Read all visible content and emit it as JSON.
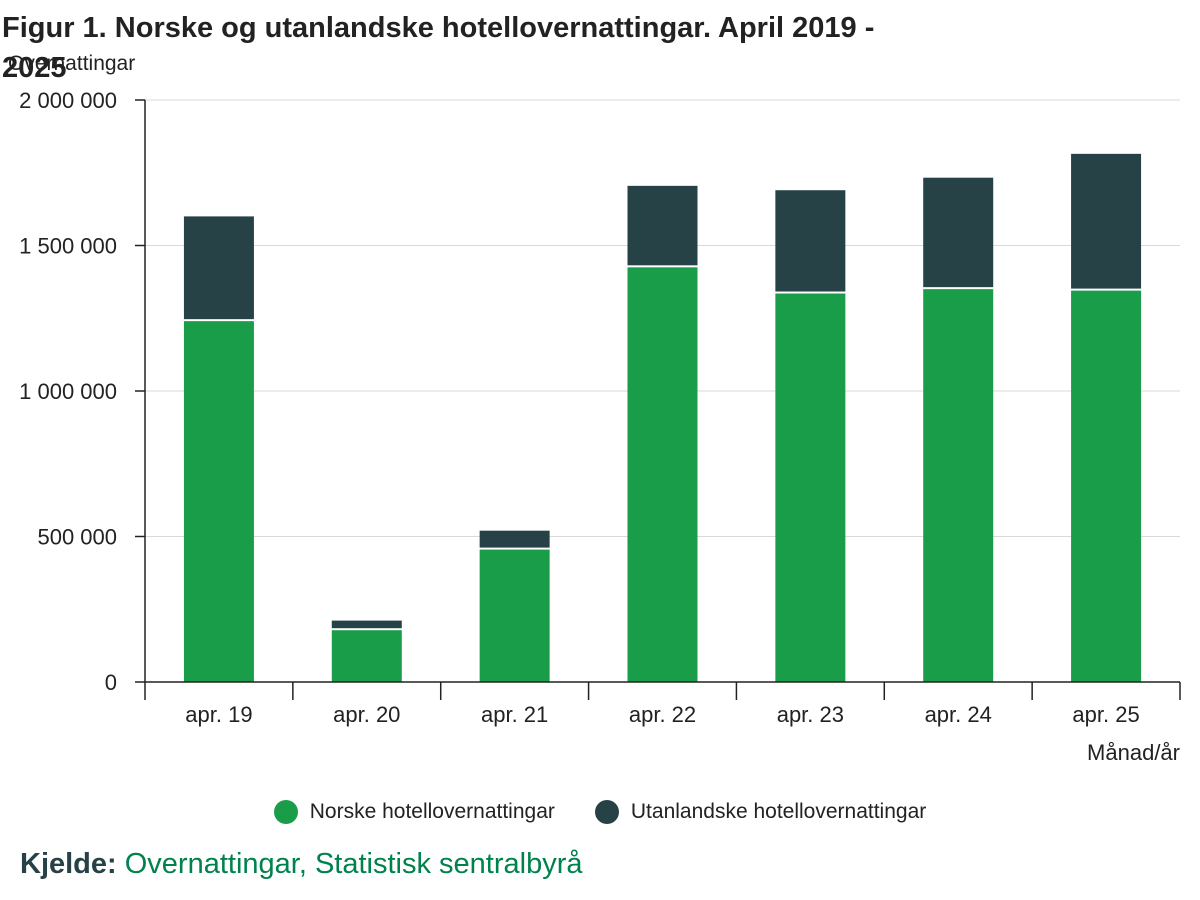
{
  "colors": {
    "norske": "#1a9d49",
    "utanlandske": "#274247",
    "grid": "#d9d9d9",
    "axis": "#222222",
    "link": "#00824d"
  },
  "chart_data": {
    "type": "bar",
    "stacked": true,
    "title": "Figur 1. Norske og utanlandske hotellovernattingar. April 2019 - 2025",
    "ylabel": "Overnattingar",
    "xlabel": "Månad/år",
    "ylim": [
      0,
      2000000
    ],
    "yticks": [
      0,
      500000,
      1000000,
      1500000,
      2000000
    ],
    "ytick_labels": [
      "0",
      "500 000",
      "1 000 000",
      "1 500 000",
      "2 000 000"
    ],
    "categories": [
      "apr. 19",
      "apr. 20",
      "apr. 21",
      "apr. 22",
      "apr. 23",
      "apr. 24",
      "apr. 25"
    ],
    "series": [
      {
        "name": "Norske hotellovernattingar",
        "values": [
          1240000,
          178000,
          455000,
          1425000,
          1335000,
          1350000,
          1345000
        ]
      },
      {
        "name": "Utanlandske hotellovernattingar",
        "values": [
          360000,
          33000,
          65000,
          280000,
          355000,
          383000,
          470000
        ]
      }
    ],
    "grid": true,
    "legend_position": "bottom"
  },
  "source": {
    "label": "Kjelde:",
    "link_text": "Overnattingar, Statistisk sentralbyrå"
  }
}
